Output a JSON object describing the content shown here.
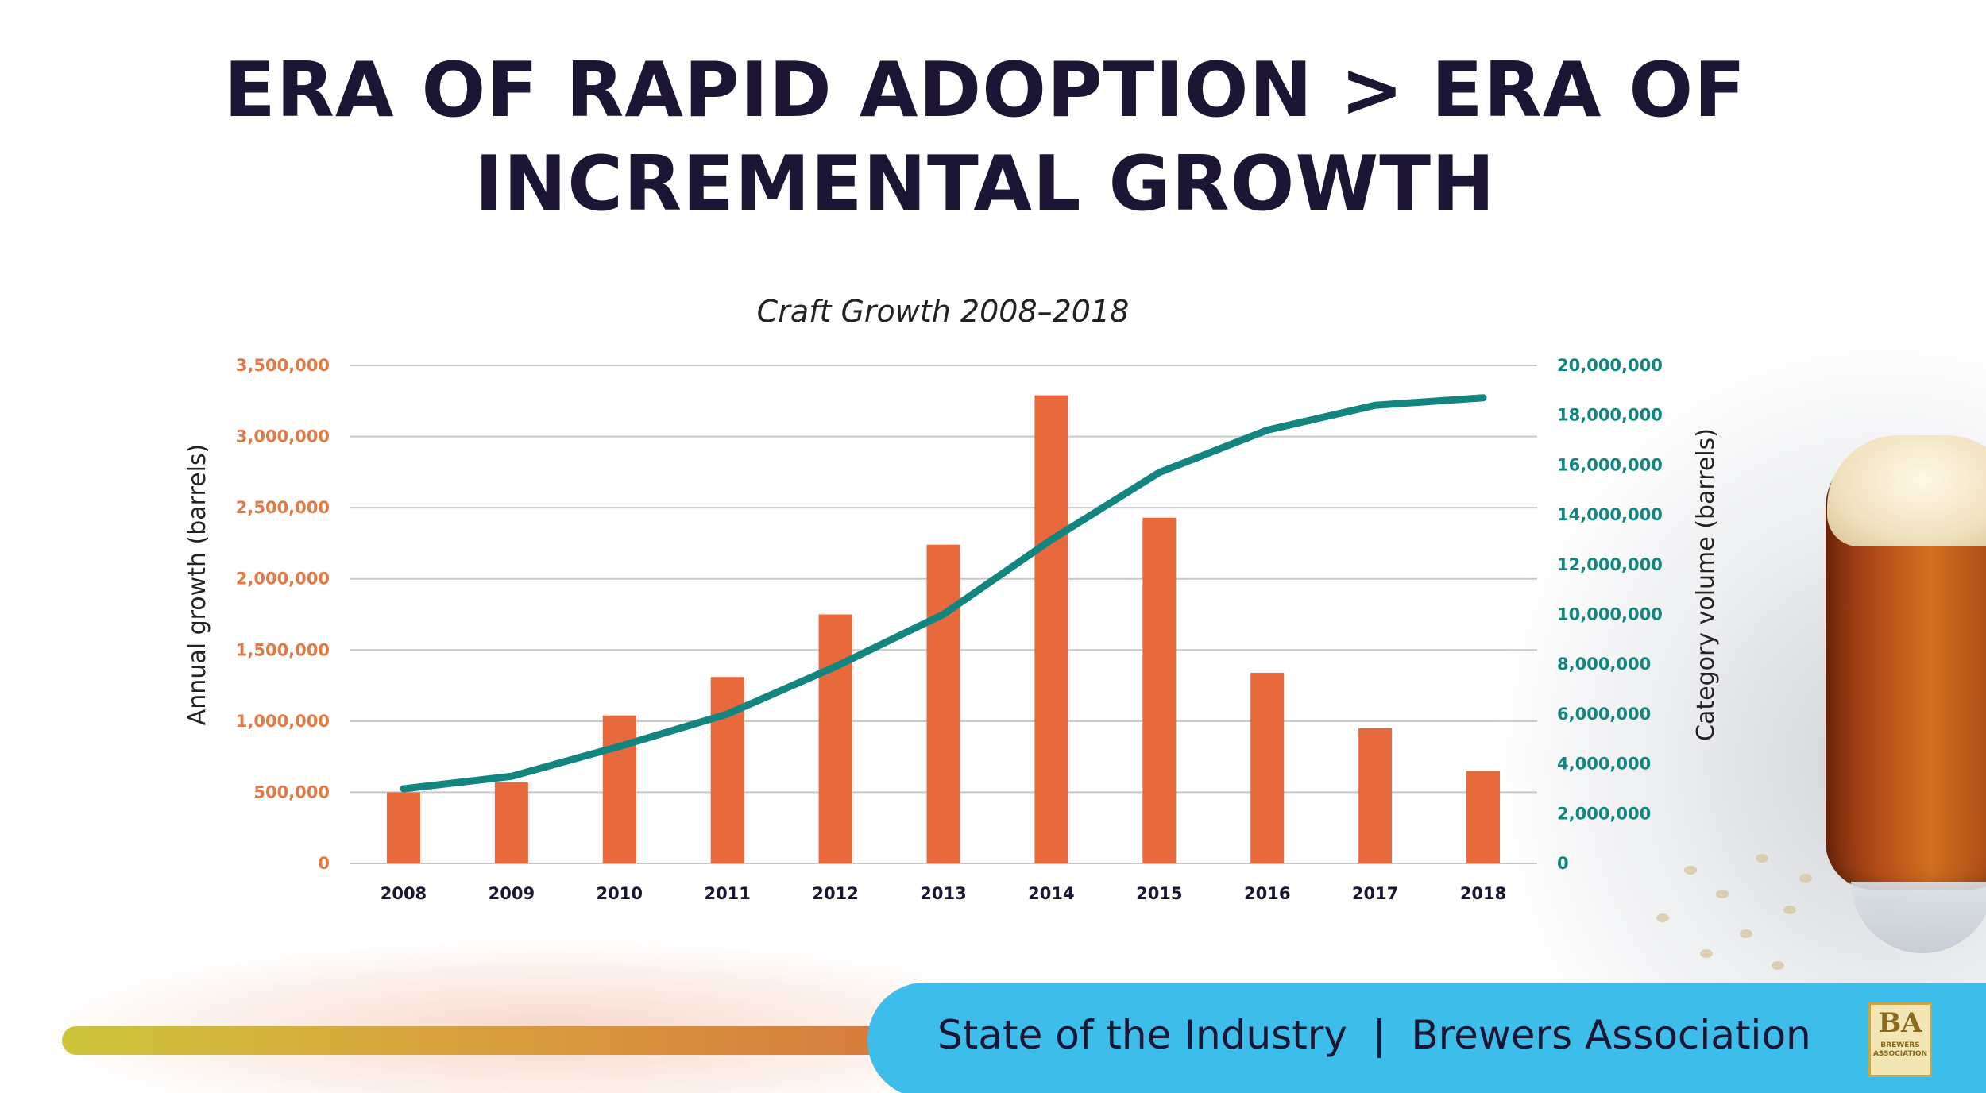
{
  "slide": {
    "title": "ERA OF RAPID ADOPTION > ERA OF INCREMENTAL GROWTH"
  },
  "footer": {
    "text": "State of the Industry  |  Brewers Association",
    "logo_mark": "BA",
    "logo_text": "BREWERS ASSOCIATION"
  },
  "colors": {
    "bar": "#e8693c",
    "line": "#138580",
    "left_axis_text": "#e07a46",
    "right_axis_text": "#138580",
    "title": "#1c1533",
    "footer_pill": "#3dbdea"
  },
  "chart_data": {
    "type": "bar",
    "title": "Craft Growth 2008–2018",
    "categories": [
      "2008",
      "2009",
      "2010",
      "2011",
      "2012",
      "2013",
      "2014",
      "2015",
      "2016",
      "2017",
      "2018"
    ],
    "series": [
      {
        "type": "bar",
        "axis": "left",
        "values": [
          500000,
          570000,
          1040000,
          1310000,
          1750000,
          2240000,
          3290000,
          2430000,
          1340000,
          950000,
          650000
        ]
      },
      {
        "type": "line",
        "axis": "right",
        "values": [
          3000000,
          3500000,
          4700000,
          6000000,
          7900000,
          10000000,
          13000000,
          15700000,
          17400000,
          18400000,
          18700000
        ]
      }
    ],
    "ylabel": "Annual growth (barrels)",
    "y2label": "Category volume (barrels)",
    "ylim": [
      0,
      3500000
    ],
    "y2lim": [
      0,
      20000000
    ],
    "yticks": [
      "0",
      "500,000",
      "1,000,000",
      "1,500,000",
      "2,000,000",
      "2,500,000",
      "3,000,000",
      "3,500,000"
    ],
    "y2ticks": [
      "0",
      "2,000,000",
      "4,000,000",
      "6,000,000",
      "8,000,000",
      "10,000,000",
      "12,000,000",
      "14,000,000",
      "16,000,000",
      "18,000,000",
      "20,000,000"
    ],
    "grid": true
  }
}
